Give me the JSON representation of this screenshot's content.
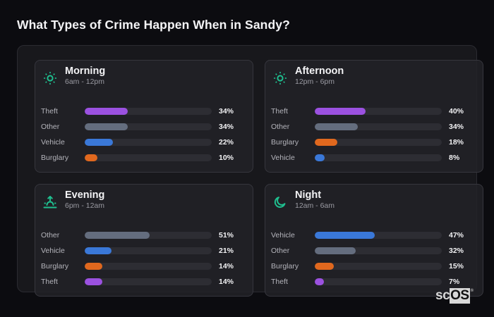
{
  "title": "What Types of Crime Happen When in Sandy?",
  "brand": {
    "left": "sc",
    "right": "OS",
    "mark": "®"
  },
  "colors": {
    "Theft": "#9b51e0",
    "Other": "#646d7e",
    "Vehicle": "#3a78d8",
    "Burglary": "#e0681e",
    "accent_icon": "#1fbf8f",
    "track": "#2d2d33"
  },
  "cards": [
    {
      "title": "Morning",
      "subtitle": "6am - 12pm",
      "icon": "sun-icon",
      "rows": [
        {
          "label": "Theft",
          "value": 34,
          "pct": "34%"
        },
        {
          "label": "Other",
          "value": 34,
          "pct": "34%"
        },
        {
          "label": "Vehicle",
          "value": 22,
          "pct": "22%"
        },
        {
          "label": "Burglary",
          "value": 10,
          "pct": "10%"
        }
      ]
    },
    {
      "title": "Afternoon",
      "subtitle": "12pm - 6pm",
      "icon": "sun-icon",
      "rows": [
        {
          "label": "Theft",
          "value": 40,
          "pct": "40%"
        },
        {
          "label": "Other",
          "value": 34,
          "pct": "34%"
        },
        {
          "label": "Burglary",
          "value": 18,
          "pct": "18%"
        },
        {
          "label": "Vehicle",
          "value": 8,
          "pct": "8%"
        }
      ]
    },
    {
      "title": "Evening",
      "subtitle": "6pm - 12am",
      "icon": "sunset-icon",
      "rows": [
        {
          "label": "Other",
          "value": 51,
          "pct": "51%"
        },
        {
          "label": "Vehicle",
          "value": 21,
          "pct": "21%"
        },
        {
          "label": "Burglary",
          "value": 14,
          "pct": "14%"
        },
        {
          "label": "Theft",
          "value": 14,
          "pct": "14%"
        }
      ]
    },
    {
      "title": "Night",
      "subtitle": "12am - 6am",
      "icon": "moon-icon",
      "rows": [
        {
          "label": "Vehicle",
          "value": 47,
          "pct": "47%"
        },
        {
          "label": "Other",
          "value": 32,
          "pct": "32%"
        },
        {
          "label": "Burglary",
          "value": 15,
          "pct": "15%"
        },
        {
          "label": "Theft",
          "value": 7,
          "pct": "7%"
        }
      ]
    }
  ],
  "chart_data": {
    "type": "bar",
    "title": "What Types of Crime Happen When in Sandy?",
    "orientation": "horizontal",
    "xlabel": "",
    "ylabel": "",
    "xlim": [
      0,
      100
    ],
    "unit": "%",
    "grid": false,
    "legend": "none",
    "panels": [
      {
        "name": "Morning",
        "subtitle": "6am - 12pm",
        "categories": [
          "Theft",
          "Other",
          "Vehicle",
          "Burglary"
        ],
        "values": [
          34,
          34,
          22,
          10
        ]
      },
      {
        "name": "Afternoon",
        "subtitle": "12pm - 6pm",
        "categories": [
          "Theft",
          "Other",
          "Burglary",
          "Vehicle"
        ],
        "values": [
          40,
          34,
          18,
          8
        ]
      },
      {
        "name": "Evening",
        "subtitle": "6pm - 12am",
        "categories": [
          "Other",
          "Vehicle",
          "Burglary",
          "Theft"
        ],
        "values": [
          51,
          21,
          14,
          14
        ]
      },
      {
        "name": "Night",
        "subtitle": "12am - 6am",
        "categories": [
          "Vehicle",
          "Other",
          "Burglary",
          "Theft"
        ],
        "values": [
          47,
          32,
          15,
          7
        ]
      }
    ],
    "series_colors": {
      "Theft": "#9b51e0",
      "Other": "#646d7e",
      "Vehicle": "#3a78d8",
      "Burglary": "#e0681e"
    }
  }
}
